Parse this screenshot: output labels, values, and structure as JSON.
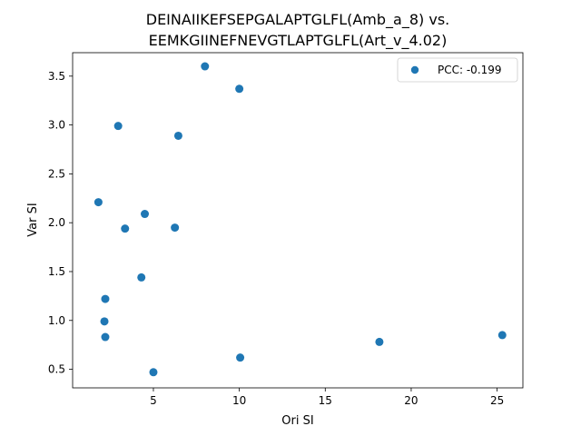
{
  "chart_data": {
    "type": "scatter",
    "title_line1": "DEINAIIKEFSEPGALAPTGLFL(Amb_a_8) vs.",
    "title_line2": "EEMKGIINEFNEVGTLAPTGLFL(Art_v_4.02)",
    "xlabel": "Ori SI",
    "ylabel": "Var SI",
    "xlim": [
      0.3,
      26.5
    ],
    "ylim": [
      0.31,
      3.74
    ],
    "xticks": [
      5,
      10,
      15,
      20,
      25
    ],
    "yticks": [
      0.5,
      1.0,
      1.5,
      2.0,
      2.5,
      3.0,
      3.5
    ],
    "xtick_labels": [
      "5",
      "10",
      "15",
      "20",
      "25"
    ],
    "ytick_labels": [
      "0.5",
      "1.0",
      "1.5",
      "2.0",
      "2.5",
      "3.0",
      "3.5"
    ],
    "grid": false,
    "legend_position": "top-right",
    "series": [
      {
        "name": "PCC: -0.199",
        "color": "#1f77b4",
        "points": [
          {
            "x": 1.8,
            "y": 2.21
          },
          {
            "x": 2.2,
            "y": 1.22
          },
          {
            "x": 2.15,
            "y": 0.99
          },
          {
            "x": 2.2,
            "y": 0.83
          },
          {
            "x": 2.95,
            "y": 2.99
          },
          {
            "x": 3.35,
            "y": 1.94
          },
          {
            "x": 4.3,
            "y": 1.44
          },
          {
            "x": 4.5,
            "y": 2.09
          },
          {
            "x": 5.0,
            "y": 0.47
          },
          {
            "x": 6.25,
            "y": 1.95
          },
          {
            "x": 6.45,
            "y": 2.89
          },
          {
            "x": 8.0,
            "y": 3.6
          },
          {
            "x": 10.0,
            "y": 3.37
          },
          {
            "x": 10.05,
            "y": 0.62
          },
          {
            "x": 18.15,
            "y": 0.78
          },
          {
            "x": 25.3,
            "y": 0.85
          }
        ]
      }
    ]
  }
}
